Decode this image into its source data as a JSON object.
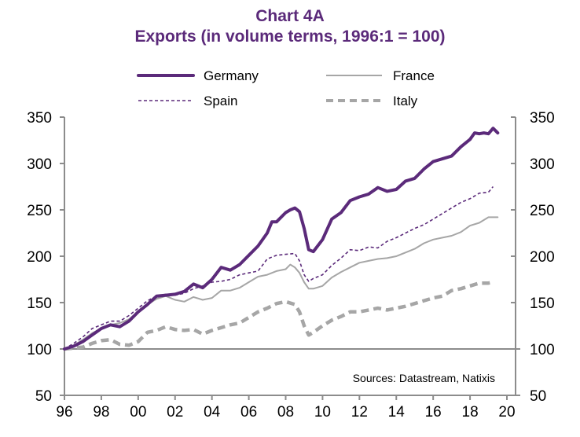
{
  "chart_data": {
    "type": "line",
    "title": "Chart 4A",
    "subtitle": "Exports (in volume terms, 1996:1 = 100)",
    "xlabel": "",
    "ylabel": "",
    "xlim": [
      1996,
      2020
    ],
    "ylim": [
      50,
      350
    ],
    "y_ticks": [
      50,
      100,
      150,
      200,
      250,
      300,
      350
    ],
    "y_tick_labels": [
      "50",
      "100",
      "150",
      "200",
      "250",
      "300",
      "350"
    ],
    "x_ticks": [
      1996,
      1998,
      2000,
      2002,
      2004,
      2006,
      2008,
      2010,
      2012,
      2014,
      2016,
      2018,
      2020
    ],
    "x_tick_labels": [
      "96",
      "98",
      "00",
      "02",
      "04",
      "06",
      "08",
      "10",
      "12",
      "14",
      "16",
      "18",
      "20"
    ],
    "reference_line": 100,
    "grid": false,
    "legend_position": "top",
    "source_note": "Sources:  Datastream,  Natixis",
    "series": [
      {
        "name": "Germany",
        "color": "#5b2a7a",
        "style": "solid-thick",
        "x": [
          1996,
          1996.5,
          1997,
          1997.5,
          1998,
          1998.5,
          1999,
          1999.5,
          2000,
          2000.5,
          2001,
          2001.5,
          2002,
          2002.5,
          2003,
          2003.5,
          2004,
          2004.5,
          2005,
          2005.5,
          2006,
          2006.5,
          2007,
          2007.25,
          2007.5,
          2008,
          2008.25,
          2008.5,
          2008.75,
          2009,
          2009.25,
          2009.5,
          2010,
          2010.5,
          2011,
          2011.5,
          2012,
          2012.5,
          2013,
          2013.5,
          2014,
          2014.5,
          2015,
          2015.5,
          2016,
          2016.5,
          2017,
          2017.5,
          2018,
          2018.25,
          2018.5,
          2018.75,
          2019,
          2019.25,
          2019.5
        ],
        "values": [
          100,
          103,
          108,
          115,
          122,
          126,
          124,
          130,
          140,
          148,
          157,
          158,
          159,
          162,
          170,
          166,
          175,
          188,
          185,
          191,
          201,
          211,
          225,
          237,
          237,
          247,
          250,
          252,
          248,
          230,
          207,
          205,
          218,
          240,
          247,
          260,
          264,
          267,
          274,
          270,
          272,
          281,
          284,
          294,
          302,
          305,
          308,
          318,
          326,
          333,
          332,
          333,
          332,
          338,
          333
        ]
      },
      {
        "name": "France",
        "color": "#a6a6a6",
        "style": "solid-thin",
        "x": [
          1996,
          1996.5,
          1997,
          1997.5,
          1998,
          1998.5,
          1999,
          1999.5,
          2000,
          2000.5,
          2001,
          2001.5,
          2002,
          2002.5,
          2003,
          2003.5,
          2004,
          2004.5,
          2005,
          2005.5,
          2006,
          2006.5,
          2007,
          2007.5,
          2008,
          2008.25,
          2008.5,
          2008.75,
          2009,
          2009.25,
          2009.5,
          2010,
          2010.5,
          2011,
          2011.5,
          2012,
          2012.5,
          2013,
          2013.5,
          2014,
          2014.5,
          2015,
          2015.5,
          2016,
          2016.5,
          2017,
          2017.5,
          2018,
          2018.5,
          2019,
          2019.5
        ],
        "values": [
          100,
          104,
          110,
          117,
          122,
          126,
          128,
          132,
          140,
          148,
          154,
          157,
          153,
          151,
          156,
          153,
          155,
          163,
          163,
          166,
          172,
          178,
          180,
          184,
          186,
          191,
          188,
          182,
          172,
          165,
          165,
          168,
          177,
          183,
          188,
          193,
          195,
          197,
          198,
          200,
          204,
          208,
          214,
          218,
          220,
          222,
          226,
          233,
          236,
          242,
          242
        ]
      },
      {
        "name": "Spain",
        "color": "#5b2a7a",
        "style": "dashed-thin",
        "x": [
          1996,
          1996.5,
          1997,
          1997.5,
          1998,
          1998.5,
          1999,
          1999.5,
          2000,
          2000.5,
          2001,
          2001.5,
          2002,
          2002.5,
          2003,
          2003.5,
          2004,
          2004.5,
          2005,
          2005.5,
          2006,
          2006.5,
          2007,
          2007.5,
          2008,
          2008.5,
          2008.75,
          2009,
          2009.25,
          2009.5,
          2010,
          2010.5,
          2011,
          2011.5,
          2012,
          2012.5,
          2013,
          2013.5,
          2014,
          2014.5,
          2015,
          2015.5,
          2016,
          2016.5,
          2017,
          2017.5,
          2018,
          2018.5,
          2019,
          2019.25
        ],
        "values": [
          100,
          106,
          113,
          122,
          126,
          130,
          130,
          136,
          144,
          152,
          157,
          159,
          158,
          160,
          165,
          168,
          172,
          173,
          175,
          180,
          182,
          184,
          197,
          201,
          202,
          203,
          195,
          180,
          173,
          176,
          180,
          190,
          198,
          207,
          206,
          210,
          209,
          216,
          220,
          225,
          230,
          234,
          240,
          246,
          252,
          258,
          262,
          268,
          269,
          275
        ]
      },
      {
        "name": "Italy",
        "color": "#a6a6a6",
        "style": "dashed-thick",
        "x": [
          1996,
          1996.5,
          1997,
          1997.5,
          1998,
          1998.5,
          1999,
          1999.5,
          2000,
          2000.5,
          2001,
          2001.5,
          2002,
          2002.5,
          2003,
          2003.5,
          2004,
          2004.5,
          2005,
          2005.5,
          2006,
          2006.5,
          2007,
          2007.5,
          2008,
          2008.5,
          2008.75,
          2009,
          2009.25,
          2009.5,
          2010,
          2010.5,
          2011,
          2011.5,
          2012,
          2012.5,
          2013,
          2013.5,
          2014,
          2014.5,
          2015,
          2015.5,
          2016,
          2016.5,
          2017,
          2017.5,
          2018,
          2018.5,
          2019,
          2019.25
        ],
        "values": [
          100,
          101,
          102,
          106,
          109,
          110,
          105,
          104,
          108,
          118,
          120,
          124,
          121,
          120,
          121,
          116,
          120,
          123,
          126,
          128,
          134,
          140,
          144,
          149,
          151,
          148,
          140,
          125,
          115,
          118,
          125,
          131,
          135,
          140,
          140,
          142,
          144,
          142,
          144,
          146,
          149,
          152,
          155,
          157,
          163,
          165,
          168,
          171,
          171,
          172
        ]
      }
    ]
  }
}
